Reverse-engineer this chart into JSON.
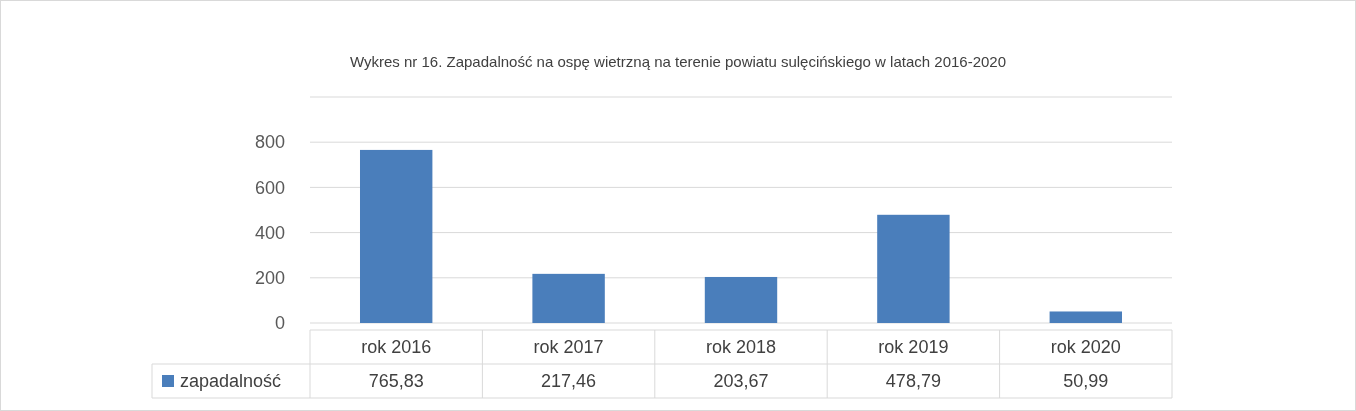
{
  "chart_data": {
    "type": "bar",
    "title": "Wykres nr 16. Zapadalność na ospę wietrzną na terenie powiatu sulęcińskiego w latach 2016-2020",
    "categories": [
      "rok 2016",
      "rok 2017",
      "rok 2018",
      "rok 2019",
      "rok 2020"
    ],
    "series": [
      {
        "name": "zapadalność",
        "color": "#4a7ebb",
        "values": [
          765.83,
          217.46,
          203.67,
          478.79,
          50.99
        ],
        "value_labels": [
          "765,83",
          "217,46",
          "203,67",
          "478,79",
          "50,99"
        ]
      }
    ],
    "ylim": [
      0,
      1000
    ],
    "yticks": [
      0,
      200,
      400,
      600,
      800,
      {
        "value": 1000,
        "label": null
      }
    ],
    "grid": "y",
    "legend": "bottom"
  }
}
